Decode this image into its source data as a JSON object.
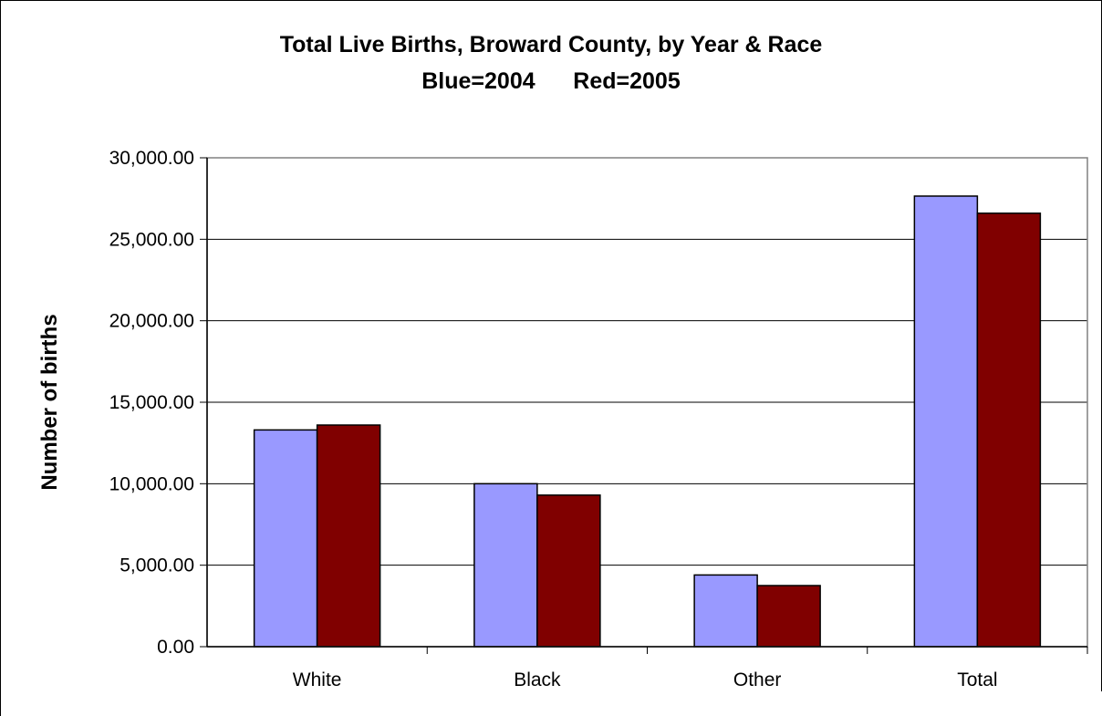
{
  "chart_data": {
    "type": "bar",
    "title": "Total Live Births, Broward County, by Year & Race",
    "subtitle": "Blue=2004      Red=2005",
    "xlabel": "",
    "ylabel": "Number of births",
    "categories": [
      "White",
      "Black",
      "Other",
      "Total"
    ],
    "series": [
      {
        "values": [
          13300,
          10000,
          4400,
          27650
        ],
        "color": "#9999ff"
      },
      {
        "values": [
          13600,
          9300,
          3750,
          26600
        ],
        "color": "#800000"
      }
    ],
    "ylim": [
      0,
      30000
    ],
    "yticks": [
      0,
      5000,
      10000,
      15000,
      20000,
      25000,
      30000
    ],
    "ytick_labels": [
      "0.00",
      "5,000.00",
      "10,000.00",
      "15,000.00",
      "20,000.00",
      "25,000.00",
      "30,000.00"
    ],
    "grid": true,
    "legend": "none"
  }
}
